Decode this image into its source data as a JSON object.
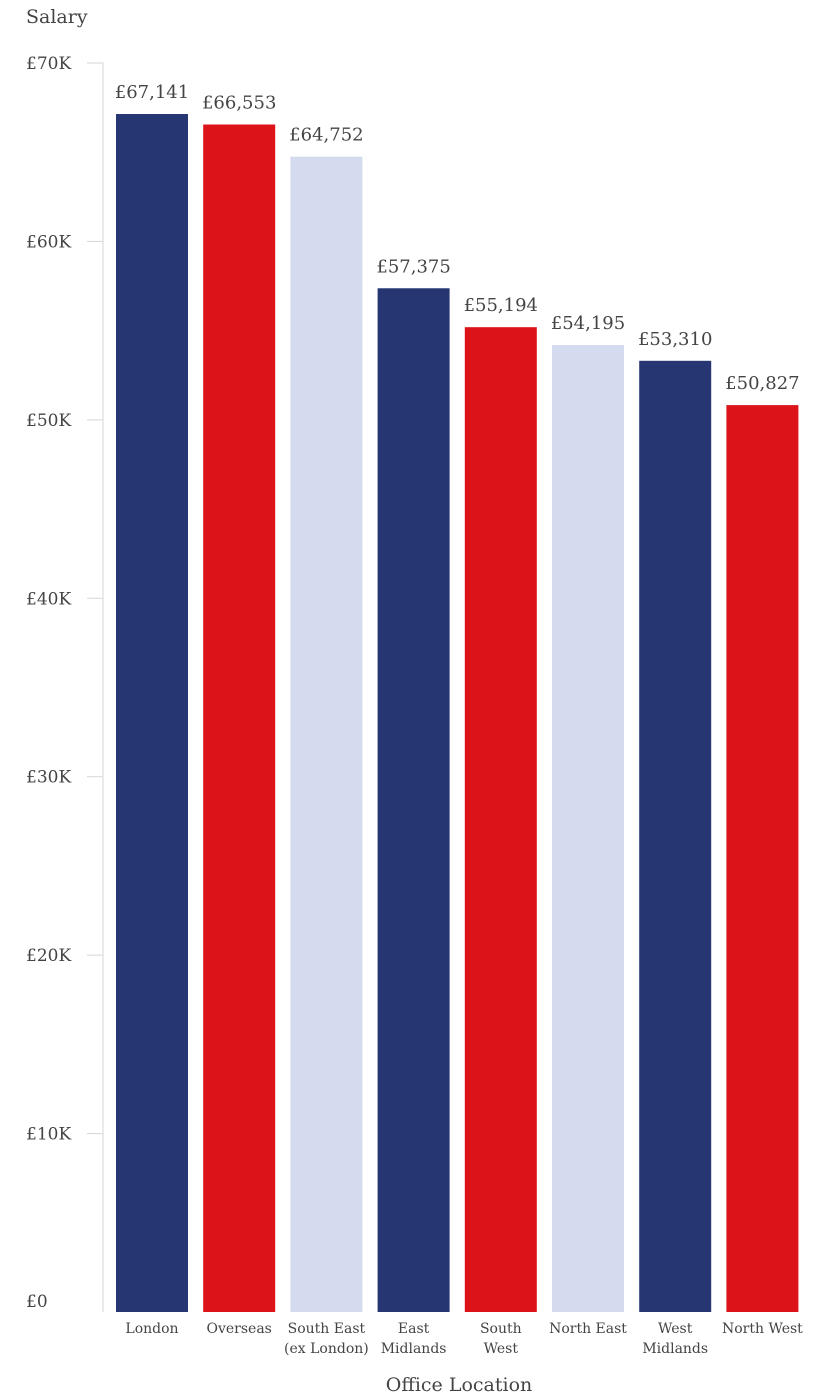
{
  "chart_data": {
    "type": "bar",
    "title": "",
    "xlabel": "Office Location",
    "ylabel": "Salary",
    "ylim": [
      0,
      70000
    ],
    "yticks": [
      {
        "value": 0,
        "label": "£0"
      },
      {
        "value": 10000,
        "label": "£10K"
      },
      {
        "value": 20000,
        "label": "£20K"
      },
      {
        "value": 30000,
        "label": "£30K"
      },
      {
        "value": 40000,
        "label": "£40K"
      },
      {
        "value": 50000,
        "label": "£50K"
      },
      {
        "value": 60000,
        "label": "£60K"
      },
      {
        "value": 70000,
        "label": "£70K"
      }
    ],
    "grid": false,
    "legend": "none",
    "categories": [
      [
        "London"
      ],
      [
        "Overseas"
      ],
      [
        "South East",
        "(ex London)"
      ],
      [
        "East",
        "Midlands"
      ],
      [
        "South",
        "West"
      ],
      [
        "North East"
      ],
      [
        "West",
        "Midlands"
      ],
      [
        "North West"
      ]
    ],
    "values": [
      67141,
      66553,
      64752,
      57375,
      55194,
      54195,
      53310,
      50827
    ],
    "value_labels": [
      "£67,141",
      "£66,553",
      "£64,752",
      "£57,375",
      "£55,194",
      "£54,195",
      "£53,310",
      "£50,827"
    ],
    "colors": [
      "#263672",
      "#dc1419",
      "#d5dbee",
      "#263672",
      "#dc1419",
      "#d5dbee",
      "#263672",
      "#dc1419"
    ],
    "axis_color": "#d6d6d6"
  }
}
